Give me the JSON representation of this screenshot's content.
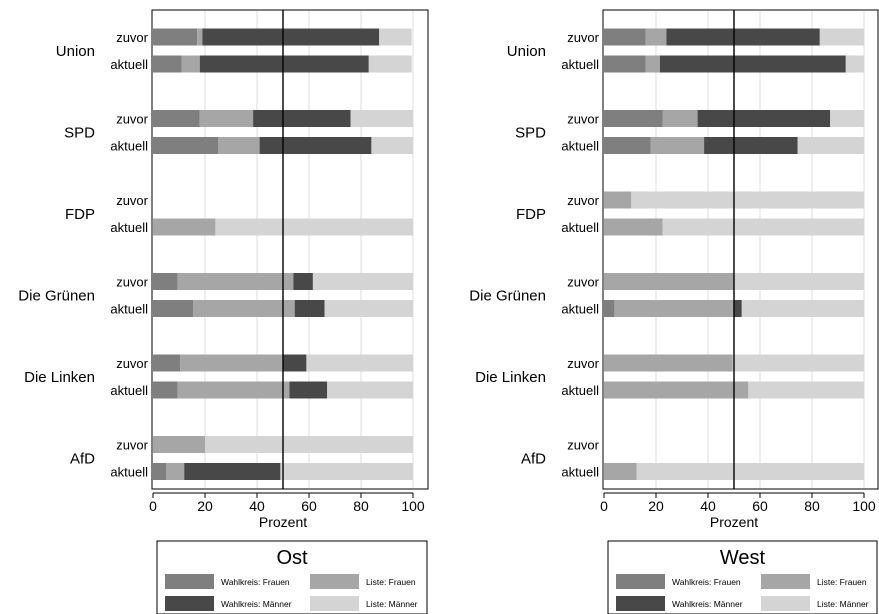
{
  "colors": {
    "wahlkreis_frauen": "#7f7f7f",
    "liste_frauen": "#a6a6a6",
    "wahlkreis_maenner": "#484848",
    "liste_maenner": "#d4d4d4",
    "grid": "#dcdcdc",
    "reference_line": "#000000"
  },
  "legend_labels": {
    "wahlkreis_frauen": "Wahlkreis: Frauen",
    "liste_frauen": "Liste: Frauen",
    "wahlkreis_maenner": "Wahlkreis: Männer",
    "liste_maenner": "Liste: Männer"
  },
  "chart_data": [
    {
      "type": "bar",
      "orientation": "horizontal",
      "stacked": true,
      "title": "Ost",
      "xlabel": "Prozent",
      "xlim": [
        0,
        100
      ],
      "xticks": [
        0,
        20,
        40,
        60,
        80,
        100
      ],
      "reference_line": 50,
      "grid": true,
      "legend_position": "bottom",
      "groups": [
        "Union",
        "SPD",
        "FDP",
        "Die Grünen",
        "Die Linken",
        "AfD"
      ],
      "subcategories": [
        "zuvor",
        "aktuell"
      ],
      "series": [
        {
          "name": "Wahlkreis: Frauen",
          "color_key": "wahlkreis_frauen",
          "values": [
            [
              17,
              11
            ],
            [
              18,
              25
            ],
            [
              0,
              0
            ],
            [
              9.5,
              15.5
            ],
            [
              10.5,
              9.5
            ],
            [
              0,
              5
            ]
          ]
        },
        {
          "name": "Liste: Frauen",
          "color_key": "liste_frauen",
          "values": [
            [
              2,
              7
            ],
            [
              20.5,
              16
            ],
            [
              0,
              24
            ],
            [
              44.5,
              39
            ],
            [
              39.5,
              43
            ],
            [
              20,
              7
            ]
          ]
        },
        {
          "name": "Wahlkreis: Männer",
          "color_key": "wahlkreis_maenner",
          "values": [
            [
              68,
              65
            ],
            [
              37.5,
              43
            ],
            [
              0,
              0
            ],
            [
              7.5,
              11.5
            ],
            [
              9,
              14.5
            ],
            [
              0,
              37
            ]
          ]
        },
        {
          "name": "Liste: Männer",
          "color_key": "liste_maenner",
          "values": [
            [
              12.5,
              16.5
            ],
            [
              24,
              16
            ],
            [
              0,
              76
            ],
            [
              38.5,
              34
            ],
            [
              41,
              33
            ],
            [
              80,
              51
            ]
          ]
        }
      ]
    },
    {
      "type": "bar",
      "orientation": "horizontal",
      "stacked": true,
      "title": "West",
      "xlabel": "Prozent",
      "xlim": [
        0,
        100
      ],
      "xticks": [
        0,
        20,
        40,
        60,
        80,
        100
      ],
      "reference_line": 50,
      "grid": true,
      "legend_position": "bottom",
      "groups": [
        "Union",
        "SPD",
        "FDP",
        "Die Grünen",
        "Die Linken",
        "AfD"
      ],
      "subcategories": [
        "zuvor",
        "aktuell"
      ],
      "series": [
        {
          "name": "Wahlkreis: Frauen",
          "color_key": "wahlkreis_frauen",
          "values": [
            [
              16,
              16
            ],
            [
              22.5,
              18
            ],
            [
              0,
              0
            ],
            [
              0,
              4
            ],
            [
              0,
              0
            ],
            [
              0,
              0
            ]
          ]
        },
        {
          "name": "Liste: Frauen",
          "color_key": "liste_frauen",
          "values": [
            [
              8,
              5.5
            ],
            [
              13.5,
              20.5
            ],
            [
              10.5,
              22.5
            ],
            [
              50,
              46
            ],
            [
              49.5,
              55.5
            ],
            [
              0,
              12.5
            ]
          ]
        },
        {
          "name": "Wahlkreis: Männer",
          "color_key": "wahlkreis_maenner",
          "values": [
            [
              59,
              71.5
            ],
            [
              51,
              36
            ],
            [
              0,
              0
            ],
            [
              0,
              3
            ],
            [
              0,
              0
            ],
            [
              0,
              0
            ]
          ]
        },
        {
          "name": "Liste: Männer",
          "color_key": "liste_maenner",
          "values": [
            [
              17,
              7
            ],
            [
              13,
              25.5
            ],
            [
              89.5,
              77.5
            ],
            [
              50,
              47
            ],
            [
              50.5,
              44.5
            ],
            [
              0,
              87.5
            ]
          ]
        }
      ]
    }
  ]
}
